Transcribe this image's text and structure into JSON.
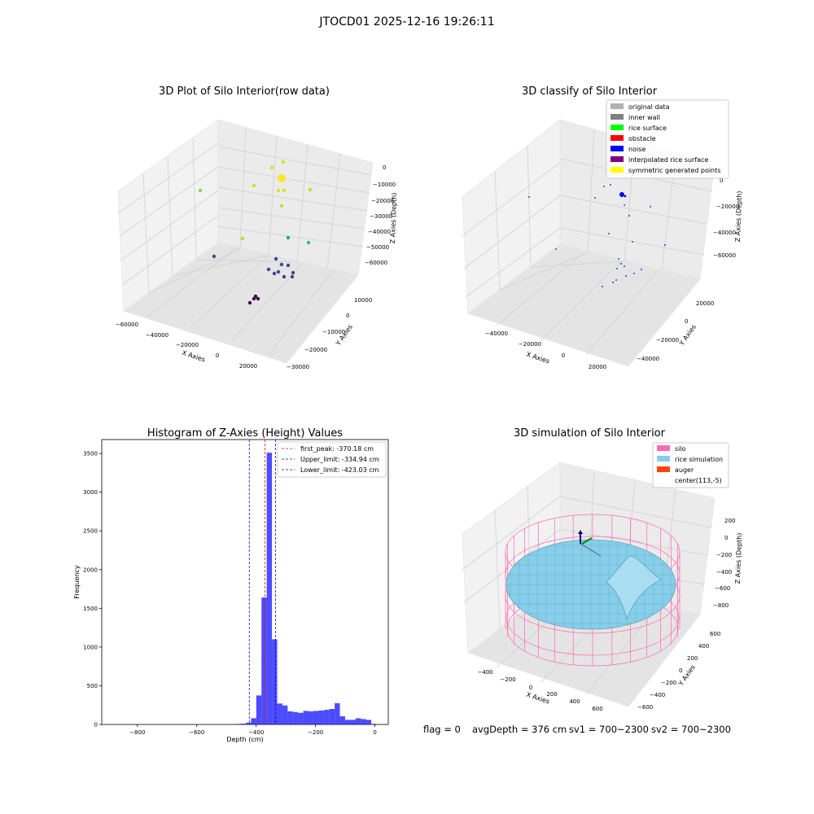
{
  "suptitle": "JTOCD01 2025-12-16 19:26:11",
  "colors": {
    "hist_bar": "#0000ff",
    "peak_line": "#ff0000",
    "limit_line": "#0000ff",
    "silo": "#ff69b4",
    "rice": "#87ceeb",
    "auger": "#ff4500"
  },
  "chart_data": [
    {
      "type": "scatter",
      "projection": "3d",
      "title": "3D Plot of Silo Interior(row data)",
      "xlabel": "X Axies",
      "ylabel": "Y Axies",
      "zlabel": "Z Axies (Depth)",
      "x_ticks": [
        "−60000",
        "−40000",
        "−20000",
        "0",
        "20000"
      ],
      "y_ticks": [
        "10000",
        "0",
        "−10000",
        "−20000",
        "−30000"
      ],
      "z_ticks": [
        "0",
        "−10000",
        "−20000",
        "−30000",
        "−40000",
        "−50000",
        "−60000"
      ],
      "grid": true,
      "colormap": "viridis by depth",
      "points_note": "scattered raw points, approx. 30 clusters"
    },
    {
      "type": "scatter",
      "projection": "3d",
      "title": "3D classify of Silo Interior",
      "xlabel": "X Axies",
      "ylabel": "Y Axies",
      "zlabel": "Z Axies (Depth)",
      "x_ticks": [
        "−40000",
        "−20000",
        "0",
        "20000"
      ],
      "y_ticks": [
        "20000",
        "0",
        "−20000",
        "−40000"
      ],
      "z_ticks": [
        "0",
        "−20000",
        "−40000",
        "−60000"
      ],
      "grid": true,
      "legend_position": "top-right",
      "legend": [
        {
          "label": "original data",
          "color": "#b0b0b0"
        },
        {
          "label": "inner wall",
          "color": "#808080"
        },
        {
          "label": "rice surface",
          "color": "#00ff00"
        },
        {
          "label": "obstacle",
          "color": "#ff0000"
        },
        {
          "label": "noise",
          "color": "#0000ff"
        },
        {
          "label": "interpolated rice surface",
          "color": "#800080"
        },
        {
          "label": "symmetric generated points",
          "color": "#ffff00"
        }
      ]
    },
    {
      "type": "bar",
      "title": "Histogram of Z-Axies (Height) Values",
      "xlabel": "Depth (cm)",
      "ylabel": "Frequency",
      "xlim": [
        -920,
        45
      ],
      "ylim": [
        0,
        3680
      ],
      "x_ticks": [
        -800,
        -600,
        -400,
        -200,
        0
      ],
      "x_tick_labels": [
        "−800",
        "−600",
        "−400",
        "−200",
        "0"
      ],
      "y_ticks": [
        0,
        500,
        1000,
        1500,
        2000,
        2500,
        3000,
        3500
      ],
      "bin_width": 17.6,
      "bins": [
        {
          "x0": -470.0,
          "value": 6
        },
        {
          "x0": -452.4,
          "value": 10
        },
        {
          "x0": -434.8,
          "value": 22
        },
        {
          "x0": -417.2,
          "value": 80
        },
        {
          "x0": -399.6,
          "value": 375
        },
        {
          "x0": -382.0,
          "value": 1640
        },
        {
          "x0": -364.4,
          "value": 3510
        },
        {
          "x0": -346.8,
          "value": 1100
        },
        {
          "x0": -329.2,
          "value": 270
        },
        {
          "x0": -311.6,
          "value": 245
        },
        {
          "x0": -294.0,
          "value": 170
        },
        {
          "x0": -276.4,
          "value": 160
        },
        {
          "x0": -258.8,
          "value": 150
        },
        {
          "x0": -241.2,
          "value": 175
        },
        {
          "x0": -223.6,
          "value": 170
        },
        {
          "x0": -206.0,
          "value": 175
        },
        {
          "x0": -188.4,
          "value": 180
        },
        {
          "x0": -170.8,
          "value": 190
        },
        {
          "x0": -153.2,
          "value": 200
        },
        {
          "x0": -135.6,
          "value": 275
        },
        {
          "x0": -118.0,
          "value": 105
        },
        {
          "x0": -100.4,
          "value": 60
        },
        {
          "x0": -82.8,
          "value": 60
        },
        {
          "x0": -65.2,
          "value": 80
        },
        {
          "x0": -47.6,
          "value": 70
        },
        {
          "x0": -30.0,
          "value": 60
        },
        {
          "x0": -12.4,
          "value": 8
        }
      ],
      "lines": [
        {
          "label": "first_peak: -370.18 cm",
          "x": -370.18,
          "color": "#ff0000"
        },
        {
          "label": "Upper_limit: -334.94 cm",
          "x": -334.94,
          "color": "#0000ff"
        },
        {
          "label": "Lower_limit: -423.03 cm",
          "x": -423.03,
          "color": "#0000ff"
        }
      ],
      "legend_position": "top-right"
    },
    {
      "type": "surface",
      "projection": "3d",
      "title": "3D simulation of Silo Interior",
      "xlabel": "X Axies",
      "ylabel": "Y Axies",
      "zlabel": "Z Axies (Depth)",
      "x_ticks": [
        "−400",
        "−200",
        "0",
        "200",
        "400",
        "600"
      ],
      "y_ticks": [
        "600",
        "400",
        "200",
        "0",
        "−200",
        "−400",
        "−600"
      ],
      "z_ticks": [
        "200",
        "0",
        "−200",
        "−400",
        "−600",
        "−800"
      ],
      "grid": true,
      "legend_position": "top-right",
      "legend": [
        {
          "label": "silo",
          "color": "#ff69b4"
        },
        {
          "label": "rice simulation",
          "color": "#87ceeb"
        },
        {
          "label": "auger",
          "color": "#ff4500"
        },
        {
          "label": "center(113,-5)",
          "color": ""
        }
      ]
    }
  ],
  "status": {
    "flag": "flag = 0",
    "avg_depth": "avgDepth = 376 cm",
    "sv1": "sv1 = 700~2300",
    "sv2": "sv2 = 700~2300"
  }
}
